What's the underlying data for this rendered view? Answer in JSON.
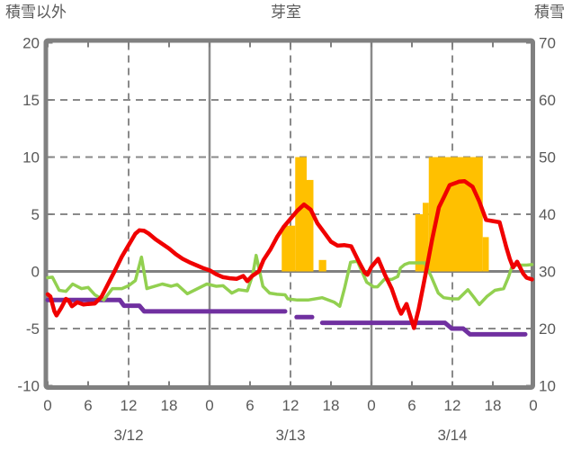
{
  "header": {
    "left_axis_title": "積雪以外",
    "title": "芽室",
    "right_axis_title": "積雪"
  },
  "chart_data": {
    "type": "line+bar",
    "title": "芽室",
    "x_axis": {
      "range_hours": [
        0,
        72
      ],
      "tick_hours": [
        0,
        6,
        12,
        18,
        24,
        30,
        36,
        42,
        48,
        54,
        60,
        66,
        72
      ],
      "tick_labels": [
        "0",
        "6",
        "12",
        "18",
        "0",
        "6",
        "12",
        "18",
        "0",
        "6",
        "12",
        "18",
        "0"
      ],
      "date_labels": [
        {
          "label": "3/12",
          "center_hour": 12
        },
        {
          "label": "3/13",
          "center_hour": 36
        },
        {
          "label": "3/14",
          "center_hour": 60
        }
      ]
    },
    "left_axis": {
      "title": "積雪以外",
      "min": -10,
      "max": 20,
      "ticks": [
        20,
        15,
        10,
        5,
        0,
        -5,
        -10
      ]
    },
    "right_axis": {
      "title": "積雪",
      "min": 10,
      "max": 70,
      "ticks": [
        70,
        60,
        50,
        40,
        30,
        20,
        10
      ]
    },
    "grid": {
      "horizontal_dashed_left_values": [
        15,
        10,
        5,
        -5
      ],
      "zero_line_left_value": 0,
      "vertical_dashed_hours": [
        12,
        36,
        60
      ],
      "vertical_solid_hours": [
        24,
        48
      ]
    },
    "colors": {
      "red_line": "#f00000",
      "green_line": "#92d050",
      "purple_line": "#7030a0",
      "orange_bars": "#ffc000",
      "grid": "#8a8a8a",
      "frame": "#808080",
      "text": "#595959"
    },
    "series": [
      {
        "name": "red_line",
        "axis": "left",
        "style": "line",
        "points": [
          [
            0,
            -2.0
          ],
          [
            0.4,
            -2.2
          ],
          [
            1,
            -3.5
          ],
          [
            1.3,
            -3.85
          ],
          [
            2,
            -3.2
          ],
          [
            2.7,
            -2.4
          ],
          [
            3.1,
            -2.55
          ],
          [
            3.6,
            -3.05
          ],
          [
            4.4,
            -2.7
          ],
          [
            5.3,
            -2.9
          ],
          [
            6,
            -2.85
          ],
          [
            7,
            -2.8
          ],
          [
            8,
            -2.2
          ],
          [
            9,
            -1.05
          ],
          [
            10,
            0.1
          ],
          [
            11,
            1.3
          ],
          [
            12,
            2.3
          ],
          [
            13,
            3.3
          ],
          [
            13.6,
            3.6
          ],
          [
            14.3,
            3.55
          ],
          [
            15,
            3.3
          ],
          [
            16,
            2.8
          ],
          [
            17,
            2.4
          ],
          [
            18,
            2.0
          ],
          [
            19,
            1.5
          ],
          [
            20,
            1.1
          ],
          [
            21,
            0.8
          ],
          [
            22,
            0.55
          ],
          [
            23,
            0.3
          ],
          [
            24,
            0.1
          ],
          [
            25,
            -0.25
          ],
          [
            26,
            -0.5
          ],
          [
            27,
            -0.6
          ],
          [
            28,
            -0.65
          ],
          [
            29,
            -0.4
          ],
          [
            29.6,
            -0.85
          ],
          [
            30.3,
            -0.4
          ],
          [
            31.3,
            0.0
          ],
          [
            32,
            1.0
          ],
          [
            33,
            1.9
          ],
          [
            34,
            3.0
          ],
          [
            35,
            3.9
          ],
          [
            36,
            4.6
          ],
          [
            37,
            5.3
          ],
          [
            38,
            5.85
          ],
          [
            39,
            5.4
          ],
          [
            40,
            4.2
          ],
          [
            41,
            3.4
          ],
          [
            42,
            2.6
          ],
          [
            43,
            2.25
          ],
          [
            44,
            2.3
          ],
          [
            45,
            2.2
          ],
          [
            46,
            1.0
          ],
          [
            47,
            -0.1
          ],
          [
            47.4,
            -0.3
          ],
          [
            48,
            0.4
          ],
          [
            49,
            1.1
          ],
          [
            50,
            -0.3
          ],
          [
            51,
            -1.5
          ],
          [
            52,
            -3.2
          ],
          [
            52.4,
            -3.7
          ],
          [
            53.2,
            -2.85
          ],
          [
            54.3,
            -4.95
          ],
          [
            55,
            -3.3
          ],
          [
            55.7,
            -1.2
          ],
          [
            56.2,
            0.3
          ],
          [
            57,
            2.8
          ],
          [
            58,
            5.6
          ],
          [
            58.7,
            6.45
          ],
          [
            59.6,
            7.55
          ],
          [
            61,
            7.85
          ],
          [
            61.8,
            7.9
          ],
          [
            63,
            7.4
          ],
          [
            64,
            6.1
          ],
          [
            65,
            4.5
          ],
          [
            66,
            4.4
          ],
          [
            67,
            4.3
          ],
          [
            68,
            2.1
          ],
          [
            68.5,
            1.1
          ],
          [
            69,
            0.35
          ],
          [
            69.6,
            0.85
          ],
          [
            70.5,
            -0.2
          ],
          [
            71,
            -0.55
          ],
          [
            71.8,
            -0.7
          ]
        ]
      },
      {
        "name": "green_line",
        "axis": "left",
        "style": "line",
        "points": [
          [
            0,
            -0.55
          ],
          [
            0.7,
            -0.5
          ],
          [
            1.7,
            -1.65
          ],
          [
            2.7,
            -1.75
          ],
          [
            3.7,
            -1.1
          ],
          [
            5,
            -1.5
          ],
          [
            6,
            -1.4
          ],
          [
            7,
            -2.05
          ],
          [
            8.3,
            -2.5
          ],
          [
            9.6,
            -1.5
          ],
          [
            11,
            -1.5
          ],
          [
            12,
            -1.25
          ],
          [
            13,
            -0.8
          ],
          [
            13.9,
            1.25
          ],
          [
            14.7,
            -1.5
          ],
          [
            17,
            -1.1
          ],
          [
            18.3,
            -1.3
          ],
          [
            19.2,
            -1.15
          ],
          [
            20.7,
            -1.95
          ],
          [
            23.6,
            -1.1
          ],
          [
            25,
            -1.3
          ],
          [
            26,
            -1.25
          ],
          [
            27.3,
            -1.9
          ],
          [
            28.3,
            -1.6
          ],
          [
            29.6,
            -1.7
          ],
          [
            30.4,
            -0.3
          ],
          [
            30.9,
            1.4
          ],
          [
            31.9,
            -1.3
          ],
          [
            32.9,
            -1.9
          ],
          [
            34,
            -2.0
          ],
          [
            35.2,
            -2.05
          ],
          [
            35.6,
            -2.4
          ],
          [
            37,
            -2.5
          ],
          [
            38.6,
            -2.5
          ],
          [
            40.7,
            -2.3
          ],
          [
            42.5,
            -2.7
          ],
          [
            43.3,
            -3.05
          ],
          [
            44,
            -1.5
          ],
          [
            44.9,
            0.8
          ],
          [
            45.9,
            0.9
          ],
          [
            46.5,
            0.1
          ],
          [
            47.3,
            -0.95
          ],
          [
            48.3,
            -1.35
          ],
          [
            48.9,
            -1.35
          ],
          [
            49.9,
            -0.7
          ],
          [
            51,
            -0.7
          ],
          [
            51.9,
            -0.45
          ],
          [
            52.3,
            0.3
          ],
          [
            52.9,
            0.6
          ],
          [
            53.6,
            0.75
          ],
          [
            55.9,
            0.75
          ],
          [
            56.9,
            -0.5
          ],
          [
            57.9,
            -1.9
          ],
          [
            58.7,
            -2.3
          ],
          [
            60,
            -2.4
          ],
          [
            60.9,
            -2.4
          ],
          [
            62.3,
            -1.6
          ],
          [
            63.1,
            -2.2
          ],
          [
            64,
            -2.9
          ],
          [
            65.1,
            -2.2
          ],
          [
            66.3,
            -1.65
          ],
          [
            67.6,
            -1.5
          ],
          [
            68.3,
            -0.5
          ],
          [
            68.9,
            0.55
          ],
          [
            71,
            0.55
          ],
          [
            71.8,
            0.6
          ]
        ]
      },
      {
        "name": "purple_line",
        "axis": "right",
        "style": "step-line",
        "unit": "cm",
        "segments": [
          [
            [
              0,
              25
            ],
            [
              10.7,
              25
            ],
            [
              11.3,
              24
            ],
            [
              13.6,
              24
            ],
            [
              14.3,
              23
            ],
            [
              35.2,
              23
            ]
          ],
          [
            [
              36.9,
              22
            ],
            [
              39.2,
              22
            ]
          ],
          [
            [
              40.7,
              21
            ],
            [
              58.9,
              21
            ],
            [
              59.9,
              20
            ],
            [
              61.6,
              20
            ],
            [
              62.6,
              19
            ],
            [
              70.8,
              19
            ]
          ]
        ]
      },
      {
        "name": "orange_bars",
        "axis": "left",
        "style": "bars",
        "bars": [
          {
            "from_h": 34.7,
            "to_h": 36.7,
            "value": 4
          },
          {
            "from_h": 36.7,
            "to_h": 38.4,
            "value": 10
          },
          {
            "from_h": 38.4,
            "to_h": 39.4,
            "value": 8
          },
          {
            "from_h": 40.2,
            "to_h": 41.3,
            "value": 1
          },
          {
            "from_h": 54.5,
            "to_h": 55.6,
            "value": 5
          },
          {
            "from_h": 55.6,
            "to_h": 56.5,
            "value": 6
          },
          {
            "from_h": 56.5,
            "to_h": 64.5,
            "value": 10
          },
          {
            "from_h": 64.5,
            "to_h": 65.4,
            "value": 3
          }
        ]
      }
    ]
  }
}
